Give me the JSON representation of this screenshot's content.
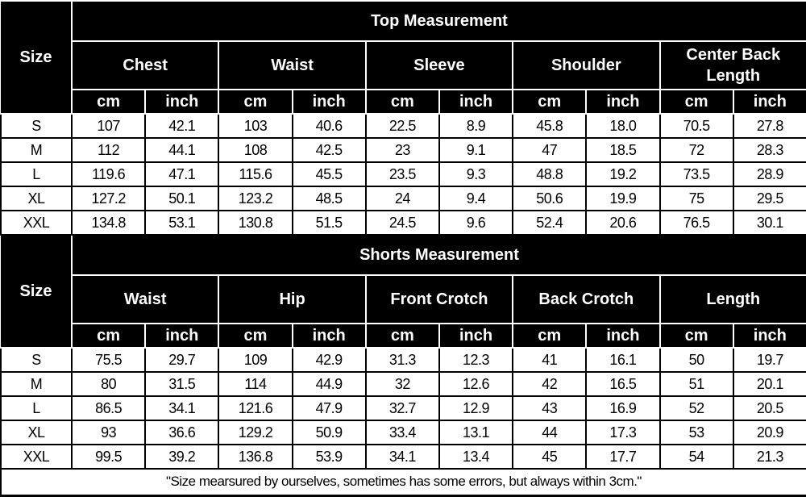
{
  "size_label": "Size",
  "tables": [
    {
      "title": "Top Measurement",
      "groups": [
        "Chest",
        "Waist",
        "Sleeve",
        "Shoulder",
        "Center Back Length"
      ],
      "units": [
        "cm",
        "inch"
      ],
      "rows": [
        {
          "size": "S",
          "values": [
            "107",
            "42.1",
            "103",
            "40.6",
            "22.5",
            "8.9",
            "45.8",
            "18.0",
            "70.5",
            "27.8"
          ]
        },
        {
          "size": "M",
          "values": [
            "112",
            "44.1",
            "108",
            "42.5",
            "23",
            "9.1",
            "47",
            "18.5",
            "72",
            "28.3"
          ]
        },
        {
          "size": "L",
          "values": [
            "119.6",
            "47.1",
            "115.6",
            "45.5",
            "23.5",
            "9.3",
            "48.8",
            "19.2",
            "73.5",
            "28.9"
          ]
        },
        {
          "size": "XL",
          "values": [
            "127.2",
            "50.1",
            "123.2",
            "48.5",
            "24",
            "9.4",
            "50.6",
            "19.9",
            "75",
            "29.5"
          ]
        },
        {
          "size": "XXL",
          "values": [
            "134.8",
            "53.1",
            "130.8",
            "51.5",
            "24.5",
            "9.6",
            "52.4",
            "20.6",
            "76.5",
            "30.1"
          ]
        }
      ]
    },
    {
      "title": "Shorts Measurement",
      "groups": [
        "Waist",
        "Hip",
        "Front Crotch",
        "Back Crotch",
        "Length"
      ],
      "units": [
        "cm",
        "inch"
      ],
      "rows": [
        {
          "size": "S",
          "values": [
            "75.5",
            "29.7",
            "109",
            "42.9",
            "31.3",
            "12.3",
            "41",
            "16.1",
            "50",
            "19.7"
          ]
        },
        {
          "size": "M",
          "values": [
            "80",
            "31.5",
            "114",
            "44.9",
            "32",
            "12.6",
            "42",
            "16.5",
            "51",
            "20.1"
          ]
        },
        {
          "size": "L",
          "values": [
            "86.5",
            "34.1",
            "121.6",
            "47.9",
            "32.7",
            "12.9",
            "43",
            "16.9",
            "52",
            "20.5"
          ]
        },
        {
          "size": "XL",
          "values": [
            "93",
            "36.6",
            "129.2",
            "50.9",
            "33.4",
            "13.1",
            "44",
            "17.3",
            "53",
            "20.9"
          ]
        },
        {
          "size": "XXL",
          "values": [
            "99.5",
            "39.2",
            "136.8",
            "53.9",
            "34.1",
            "13.4",
            "45",
            "17.7",
            "54",
            "21.3"
          ]
        }
      ]
    }
  ],
  "note": "\"Size mearsured by ourselves, sometimes has some errors, but always within 3cm.\""
}
